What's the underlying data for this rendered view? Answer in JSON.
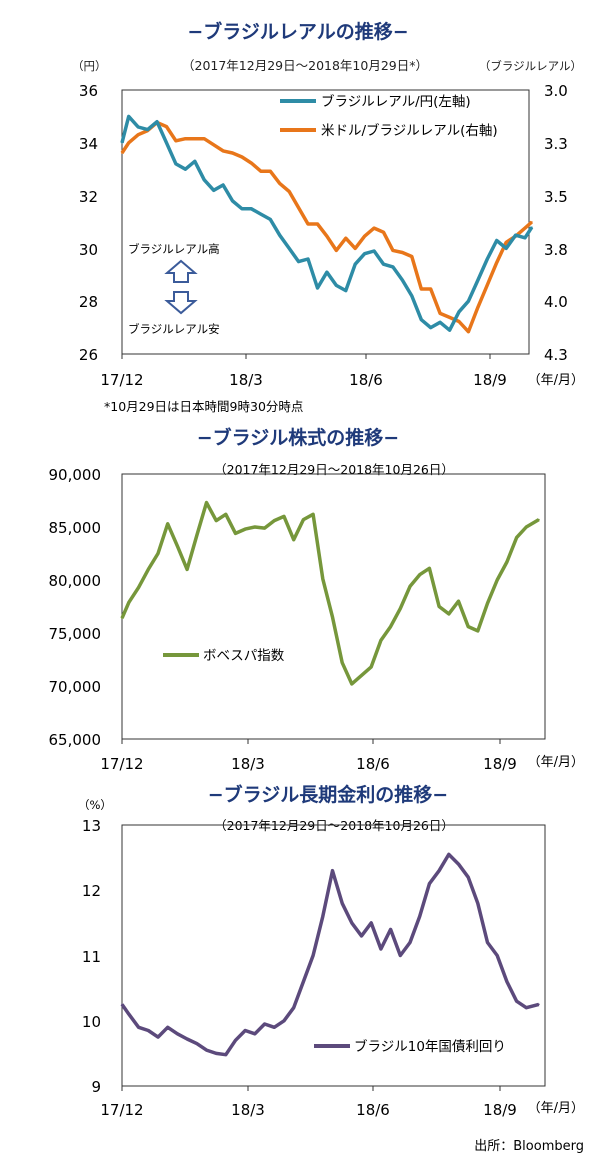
{
  "chart_data": [
    {
      "type": "line",
      "title": "−ブラジルレアルの推移−",
      "subtitle": "（2017年12月29日～2018年10月29日*）",
      "left_unit": "（円）",
      "right_unit": "（ブラジルレアル）",
      "x_unit": "（年/月）",
      "x_ticks": [
        "17/12",
        "18/3",
        "18/6",
        "18/9"
      ],
      "y_left_ticks": [
        "36",
        "34",
        "32",
        "30",
        "28",
        "26"
      ],
      "y_right_ticks": [
        "3.0",
        "3.3",
        "3.5",
        "3.8",
        "4.0",
        "4.3"
      ],
      "ylim_left": [
        26,
        36
      ],
      "ylim_right": [
        4.3,
        3.0
      ],
      "y_right_inverted": true,
      "legend_position": "top-right",
      "note": "*10月29日は日本時間9時30分時点",
      "annotation_up": "ブラジルレアル高",
      "annotation_down": "ブラジルレアル安",
      "x": [
        "2017-12-29",
        "2018-01-03",
        "2018-01-10",
        "2018-01-17",
        "2018-01-24",
        "2018-01-31",
        "2018-02-07",
        "2018-02-14",
        "2018-02-21",
        "2018-02-28",
        "2018-03-07",
        "2018-03-14",
        "2018-03-21",
        "2018-03-28",
        "2018-04-04",
        "2018-04-11",
        "2018-04-18",
        "2018-04-25",
        "2018-05-02",
        "2018-05-09",
        "2018-05-16",
        "2018-05-23",
        "2018-05-30",
        "2018-06-06",
        "2018-06-13",
        "2018-06-20",
        "2018-06-27",
        "2018-07-04",
        "2018-07-11",
        "2018-07-18",
        "2018-07-25",
        "2018-08-01",
        "2018-08-08",
        "2018-08-15",
        "2018-08-22",
        "2018-08-29",
        "2018-09-05",
        "2018-09-12",
        "2018-09-19",
        "2018-09-26",
        "2018-10-03",
        "2018-10-10",
        "2018-10-17",
        "2018-10-24",
        "2018-10-29"
      ],
      "series": [
        {
          "name": "ブラジルレアル/円(左軸)",
          "axis": "left",
          "color": "#2e8ca6",
          "values": [
            34.0,
            35.0,
            34.6,
            34.5,
            34.8,
            34.0,
            33.2,
            33.0,
            33.3,
            32.6,
            32.2,
            32.4,
            31.8,
            31.5,
            31.5,
            31.3,
            31.1,
            30.5,
            30.0,
            29.5,
            29.6,
            28.5,
            29.1,
            28.6,
            28.4,
            29.4,
            29.8,
            29.9,
            29.4,
            29.3,
            28.8,
            28.2,
            27.3,
            27.0,
            27.2,
            26.9,
            27.6,
            28.0,
            28.8,
            29.6,
            30.3,
            30.0,
            30.5,
            30.4,
            30.8
          ]
        },
        {
          "name": "米ドル/ブラジルレアル(右軸)",
          "axis": "right",
          "color": "#e8761a",
          "values": [
            3.31,
            3.26,
            3.22,
            3.2,
            3.16,
            3.18,
            3.25,
            3.24,
            3.24,
            3.24,
            3.27,
            3.3,
            3.31,
            3.33,
            3.36,
            3.4,
            3.4,
            3.46,
            3.5,
            3.58,
            3.66,
            3.66,
            3.72,
            3.79,
            3.73,
            3.78,
            3.72,
            3.68,
            3.7,
            3.79,
            3.8,
            3.82,
            3.98,
            3.98,
            4.1,
            4.12,
            4.14,
            4.19,
            4.07,
            3.96,
            3.85,
            3.75,
            3.72,
            3.68,
            3.65
          ]
        }
      ]
    },
    {
      "type": "line",
      "title": "−ブラジル株式の推移−",
      "subtitle": "（2017年12月29日～2018年10月26日）",
      "x_unit": "（年/月）",
      "x_ticks": [
        "17/12",
        "18/3",
        "18/6",
        "18/9"
      ],
      "y_ticks": [
        "90,000",
        "85,000",
        "80,000",
        "75,000",
        "70,000",
        "65,000"
      ],
      "ylim": [
        65000,
        90000
      ],
      "legend_position": "left-middle",
      "x": [
        "2017-12-29",
        "2018-01-03",
        "2018-01-10",
        "2018-01-17",
        "2018-01-24",
        "2018-01-31",
        "2018-02-07",
        "2018-02-14",
        "2018-02-21",
        "2018-02-28",
        "2018-03-07",
        "2018-03-14",
        "2018-03-21",
        "2018-03-28",
        "2018-04-04",
        "2018-04-11",
        "2018-04-18",
        "2018-04-25",
        "2018-05-02",
        "2018-05-09",
        "2018-05-16",
        "2018-05-23",
        "2018-05-30",
        "2018-06-06",
        "2018-06-13",
        "2018-06-20",
        "2018-06-27",
        "2018-07-04",
        "2018-07-11",
        "2018-07-18",
        "2018-07-25",
        "2018-08-01",
        "2018-08-08",
        "2018-08-15",
        "2018-08-22",
        "2018-08-29",
        "2018-09-05",
        "2018-09-12",
        "2018-09-19",
        "2018-09-26",
        "2018-10-03",
        "2018-10-10",
        "2018-10-17",
        "2018-10-26"
      ],
      "series": [
        {
          "name": "ボベスパ指数",
          "color": "#76973b",
          "values": [
            76400,
            77900,
            79300,
            81000,
            82500,
            85300,
            83200,
            81000,
            84200,
            87300,
            85600,
            86200,
            84400,
            84800,
            85000,
            84900,
            85600,
            86000,
            83800,
            85700,
            86200,
            80100,
            76500,
            72200,
            70200,
            71000,
            71800,
            74300,
            75600,
            77300,
            79400,
            80500,
            81100,
            77500,
            76800,
            78000,
            75600,
            75200,
            77800,
            80000,
            81700,
            84000,
            85000,
            85700
          ]
        }
      ]
    },
    {
      "type": "line",
      "title": "−ブラジル長期金利の推移−",
      "subtitle": "（2017年12月29日～2018年10月26日）",
      "y_unit": "（%）",
      "x_unit": "（年/月）",
      "x_ticks": [
        "17/12",
        "18/3",
        "18/6",
        "18/9"
      ],
      "y_ticks": [
        "13",
        "12",
        "11",
        "10",
        "9"
      ],
      "ylim": [
        9,
        13
      ],
      "legend_position": "bottom-right",
      "x": [
        "2017-12-29",
        "2018-01-03",
        "2018-01-10",
        "2018-01-17",
        "2018-01-24",
        "2018-01-31",
        "2018-02-07",
        "2018-02-14",
        "2018-02-21",
        "2018-02-28",
        "2018-03-07",
        "2018-03-14",
        "2018-03-21",
        "2018-03-28",
        "2018-04-04",
        "2018-04-11",
        "2018-04-18",
        "2018-04-25",
        "2018-05-02",
        "2018-05-09",
        "2018-05-16",
        "2018-05-23",
        "2018-05-30",
        "2018-06-06",
        "2018-06-13",
        "2018-06-20",
        "2018-06-27",
        "2018-07-04",
        "2018-07-11",
        "2018-07-18",
        "2018-07-25",
        "2018-08-01",
        "2018-08-08",
        "2018-08-15",
        "2018-08-22",
        "2018-08-29",
        "2018-09-05",
        "2018-09-12",
        "2018-09-19",
        "2018-09-26",
        "2018-10-03",
        "2018-10-10",
        "2018-10-17",
        "2018-10-26"
      ],
      "series": [
        {
          "name": "ブラジル10年国債利回り",
          "color": "#5c4a7c",
          "values": [
            10.25,
            10.1,
            9.9,
            9.85,
            9.75,
            9.9,
            9.8,
            9.72,
            9.65,
            9.55,
            9.5,
            9.48,
            9.7,
            9.85,
            9.8,
            9.95,
            9.9,
            10.0,
            10.2,
            10.6,
            11.0,
            11.6,
            12.3,
            11.8,
            11.5,
            11.3,
            11.5,
            11.1,
            11.4,
            11.0,
            11.2,
            11.6,
            12.1,
            12.3,
            12.55,
            12.4,
            12.2,
            11.8,
            11.2,
            11.0,
            10.6,
            10.3,
            10.2,
            10.25
          ]
        }
      ]
    }
  ],
  "source": "出所：Bloomberg"
}
